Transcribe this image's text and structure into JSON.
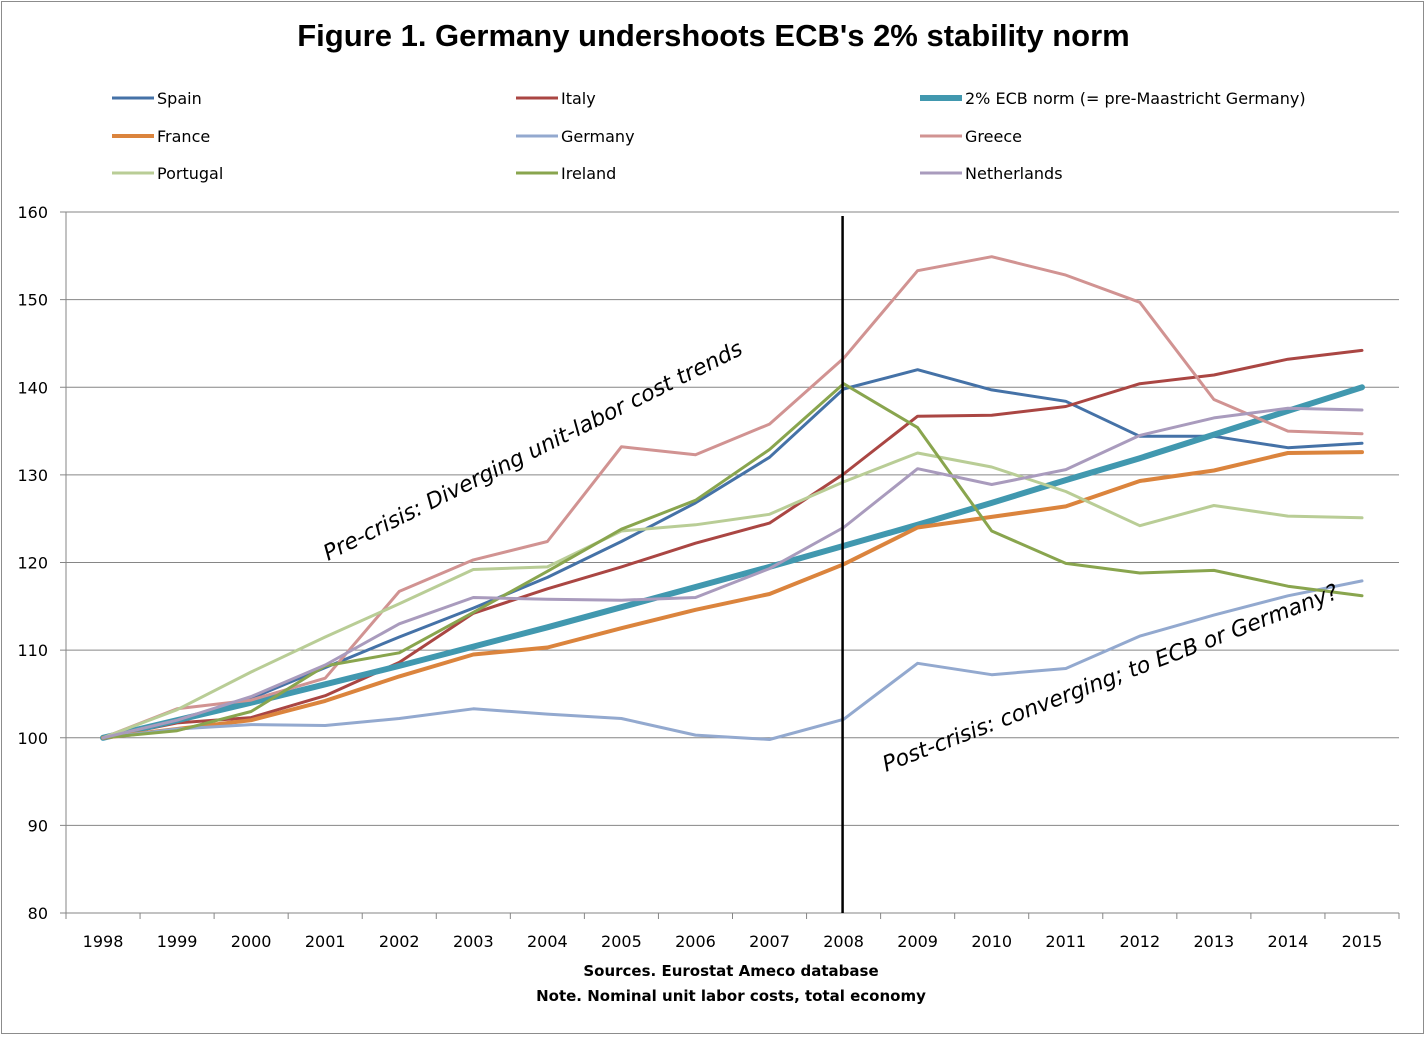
{
  "title": "Figure 1. Germany undershoots ECB's 2% stability norm",
  "footnotes": {
    "source": "Sources. Eurostat Ameco database",
    "note": "Note. Nominal unit labor costs, total economy"
  },
  "chart_data": {
    "type": "line",
    "x": [
      1998,
      1999,
      2000,
      2001,
      2002,
      2003,
      2004,
      2005,
      2006,
      2007,
      2008,
      2009,
      2010,
      2011,
      2012,
      2013,
      2014,
      2015
    ],
    "ylim": [
      80,
      160
    ],
    "yticks": [
      80,
      90,
      100,
      110,
      120,
      130,
      140,
      150,
      160
    ],
    "grid": true,
    "legend_position": "top",
    "vertical_marker_year": 2008,
    "annotations": [
      {
        "text": "Pre-crisis: Diverging unit-labor cost trends"
      },
      {
        "text": "Post-crisis: converging; to ECB or Germany?"
      }
    ],
    "series": [
      {
        "name": "Spain",
        "color": "#4572a7",
        "values": [
          100,
          102.0,
          104.5,
          108.0,
          111.5,
          114.8,
          118.3,
          122.4,
          126.8,
          132.0,
          139.8,
          142.0,
          139.7,
          138.4,
          134.4,
          134.4,
          133.1,
          133.6
        ]
      },
      {
        "name": "Italy",
        "color": "#aa4643",
        "values": [
          100,
          101.7,
          102.3,
          104.8,
          108.6,
          114.2,
          117.0,
          119.5,
          122.2,
          124.5,
          130.1,
          136.7,
          136.8,
          137.8,
          140.4,
          141.4,
          143.2,
          144.2
        ]
      },
      {
        "name": "2% ECB norm (= pre-Maastricht Germany)",
        "color": "#4198af",
        "width": 6,
        "values": [
          100,
          102.0,
          104.0,
          106.1,
          108.2,
          110.4,
          112.6,
          114.9,
          117.2,
          119.5,
          121.9,
          124.3,
          126.8,
          129.4,
          131.9,
          134.6,
          137.3,
          140.0
        ]
      },
      {
        "name": "France",
        "color": "#db843d",
        "width": 4,
        "values": [
          100,
          101.0,
          102.0,
          104.2,
          107.0,
          109.5,
          110.3,
          112.5,
          114.6,
          116.4,
          119.8,
          124.0,
          125.2,
          126.4,
          129.3,
          130.5,
          132.5,
          132.6
        ]
      },
      {
        "name": "Germany",
        "color": "#93a9cf",
        "values": [
          100,
          101.0,
          101.5,
          101.4,
          102.2,
          103.3,
          102.7,
          102.2,
          100.3,
          99.8,
          102.1,
          108.5,
          107.2,
          107.9,
          111.6,
          114.0,
          116.2,
          117.9
        ]
      },
      {
        "name": "Greece",
        "color": "#d19392",
        "values": [
          100,
          103.3,
          104.3,
          106.8,
          116.7,
          120.3,
          122.4,
          133.2,
          132.3,
          135.8,
          143.3,
          153.3,
          154.9,
          152.8,
          149.7,
          138.6,
          135.0,
          134.7
        ]
      },
      {
        "name": "Portugal",
        "color": "#b9cd96",
        "values": [
          100,
          103.2,
          107.5,
          111.5,
          115.3,
          119.2,
          119.5,
          123.6,
          124.3,
          125.5,
          129.2,
          132.5,
          130.9,
          128.1,
          124.2,
          126.5,
          125.3,
          125.1
        ]
      },
      {
        "name": "Ireland",
        "color": "#89a54e",
        "values": [
          100,
          100.8,
          103.0,
          108.2,
          109.7,
          114.3,
          119.0,
          123.8,
          127.1,
          132.9,
          140.4,
          135.4,
          123.6,
          119.9,
          118.8,
          119.1,
          117.3,
          116.2
        ]
      },
      {
        "name": "Netherlands",
        "color": "#a99bbd",
        "values": [
          100,
          102.0,
          104.7,
          108.3,
          113.0,
          116.0,
          115.8,
          115.7,
          116.0,
          119.3,
          124.0,
          130.7,
          128.9,
          130.6,
          134.5,
          136.5,
          137.6,
          137.4
        ]
      }
    ]
  }
}
